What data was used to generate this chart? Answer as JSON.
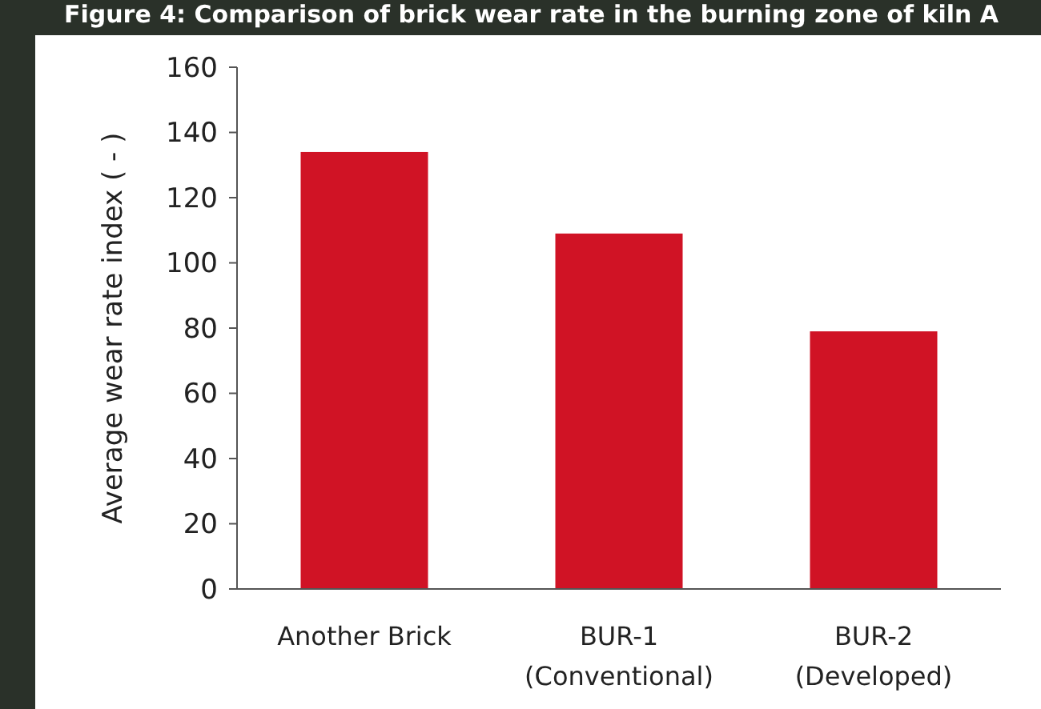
{
  "chart_data": {
    "type": "bar",
    "title": "Figure 4: Comparison of brick wear rate in the burning zone of kiln A",
    "ylabel": "Average wear rate index ( - )",
    "categories": [
      "Another Brick",
      "BUR-1\n(Conventional)",
      "BUR-2\n(Developed)"
    ],
    "values": [
      134,
      109,
      79
    ],
    "color": "#d01325",
    "ylim": [
      0,
      160
    ],
    "yticks": [
      0,
      20,
      40,
      60,
      80,
      100,
      120,
      140,
      160
    ],
    "grid": false
  }
}
